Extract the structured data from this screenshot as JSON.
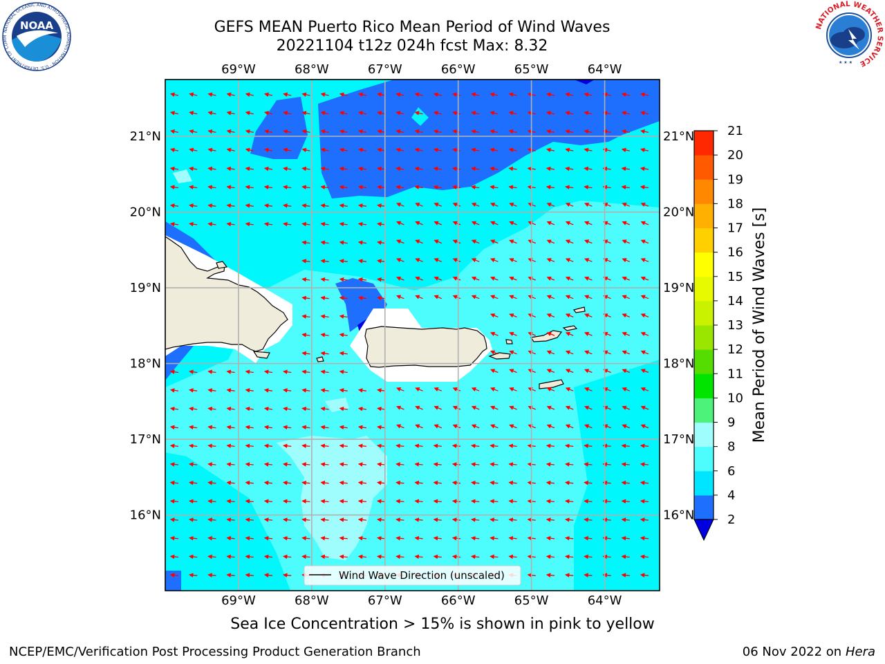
{
  "header": {
    "title_line1": "GEFS MEAN Puerto Rico Mean Period of Wind Waves",
    "title_line2": "20221104 t12z 024h fcst   Max: 8.32"
  },
  "logos": {
    "noaa_text": "NOAA",
    "noaa_ring_text": "NATIONAL OCEANIC AND ATMOSPHERIC ADMINISTRATION · U.S. DEPARTMENT OF COMMERCE",
    "nws_ring_text": "NATIONAL WEATHER SERVICE"
  },
  "map": {
    "lon_ticks": [
      "69°W",
      "68°W",
      "67°W",
      "66°W",
      "65°W",
      "64°W"
    ],
    "lat_ticks": [
      "21°N",
      "20°N",
      "19°N",
      "18°N",
      "17°N",
      "16°N"
    ],
    "lon_range": [
      -70.0,
      -63.25
    ],
    "lat_range": [
      15.0,
      21.75
    ],
    "legend_label": "Wind Wave Direction (unscaled)",
    "arrow_color": "#ff0000",
    "land_color": "#efecdc",
    "max_value": 8.32
  },
  "colorbar": {
    "label": "Mean Period of Wind Waves [s]",
    "ticks": [
      "2",
      "4",
      "6",
      "8",
      "9",
      "10",
      "11",
      "12",
      "13",
      "14",
      "15",
      "16",
      "17",
      "18",
      "19",
      "20",
      "21"
    ],
    "levels": [
      2,
      4,
      6,
      8,
      9,
      10,
      11,
      12,
      13,
      14,
      15,
      16,
      17,
      18,
      19,
      20,
      21
    ],
    "colors": [
      "#1f6fff",
      "#00e5ff",
      "#4dfdfd",
      "#a0fdfd",
      "#4cf27a",
      "#00e400",
      "#55dc00",
      "#9be600",
      "#c8f200",
      "#e8fa00",
      "#ffff00",
      "#ffd000",
      "#ffb000",
      "#ff8800",
      "#ff5a00",
      "#ff2800"
    ],
    "under_color": "#0000e0",
    "over_color": "#ff0000"
  },
  "subtitle": "Sea Ice Concentration > 15% is shown in pink to yellow",
  "footer": {
    "left": "NCEP/EMC/Verification Post Processing Product Generation Branch",
    "right_date": "06 Nov 2022 on",
    "right_host": "Hera"
  }
}
